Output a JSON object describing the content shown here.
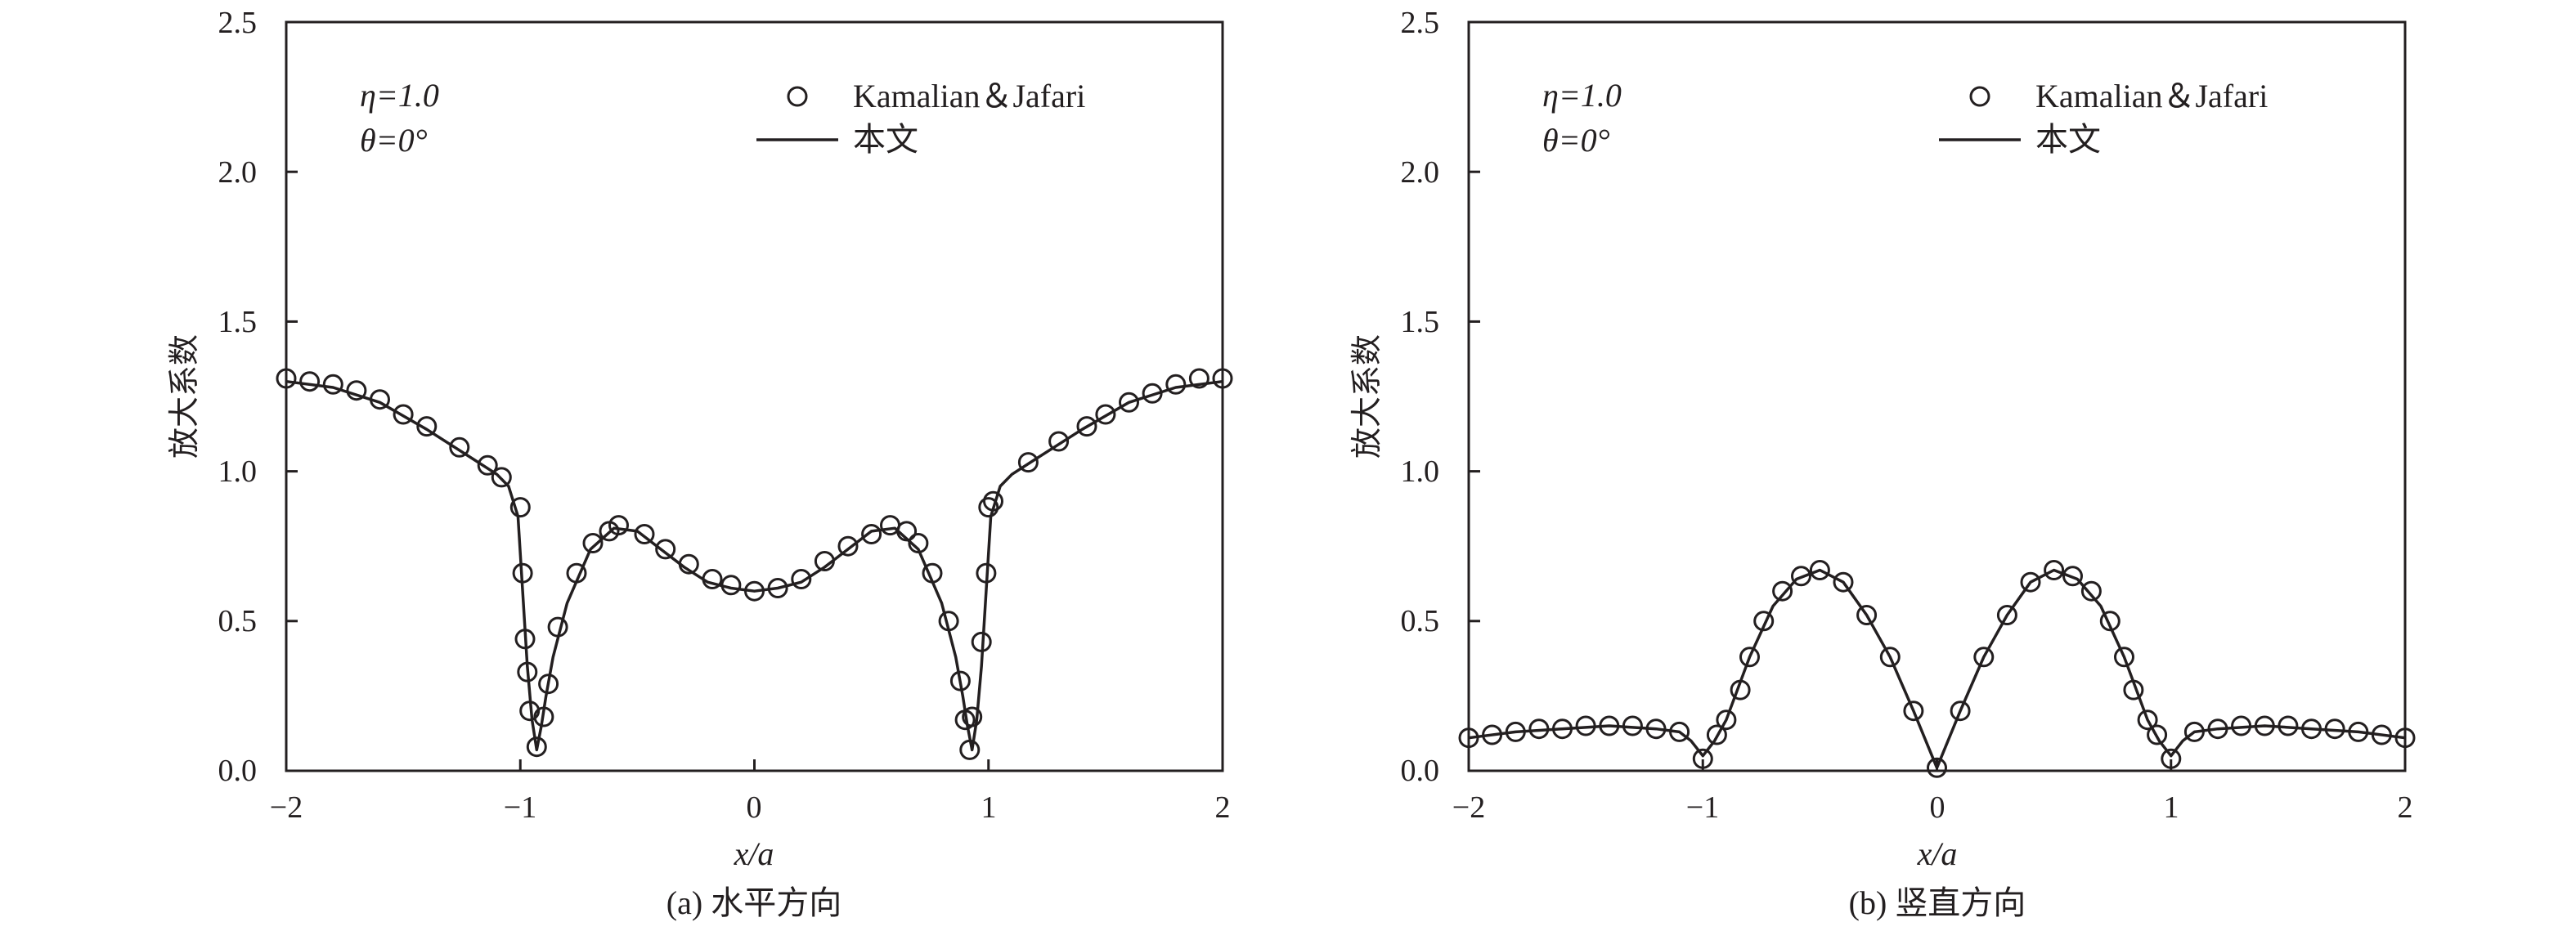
{
  "chart_data": [
    {
      "type": "scatter",
      "panel": "a",
      "caption": "(a) 水平方向",
      "xlabel": "x/a",
      "ylabel": "放大系数",
      "xlim": [
        -2,
        2
      ],
      "ylim": [
        0,
        2.5
      ],
      "x_ticks": [
        "−2",
        "−1",
        "0",
        "1",
        "2"
      ],
      "y_ticks": [
        "0.0",
        "0.5",
        "1.0",
        "1.5",
        "2.0",
        "2.5"
      ],
      "annotations": {
        "eta": "η=1.0",
        "theta": "θ=0°"
      },
      "legend_position": "top-right",
      "series": [
        {
          "name": "Kamalian＆Jafari",
          "marker": "open-circle",
          "x": [
            -2.0,
            -1.9,
            -1.8,
            -1.7,
            -1.6,
            -1.5,
            -1.4,
            -1.26,
            -1.14,
            -1.08,
            -1.0,
            -0.99,
            -0.98,
            -0.97,
            -0.96,
            -0.93,
            -0.9,
            -0.88,
            -0.84,
            -0.76,
            -0.69,
            -0.62,
            -0.58,
            -0.47,
            -0.38,
            -0.28,
            -0.18,
            -0.1,
            0.0,
            0.1,
            0.2,
            0.3,
            0.4,
            0.5,
            0.58,
            0.65,
            0.7,
            0.76,
            0.83,
            0.88,
            0.9,
            0.92,
            0.93,
            0.97,
            0.99,
            1.0,
            1.02,
            1.17,
            1.3,
            1.42,
            1.5,
            1.6,
            1.7,
            1.8,
            1.9,
            2.0
          ],
          "y": [
            1.31,
            1.3,
            1.29,
            1.27,
            1.24,
            1.19,
            1.15,
            1.08,
            1.02,
            0.98,
            0.88,
            0.66,
            0.44,
            0.33,
            0.2,
            0.08,
            0.18,
            0.29,
            0.48,
            0.66,
            0.76,
            0.8,
            0.82,
            0.79,
            0.74,
            0.69,
            0.64,
            0.62,
            0.6,
            0.61,
            0.64,
            0.7,
            0.75,
            0.79,
            0.82,
            0.8,
            0.76,
            0.66,
            0.5,
            0.3,
            0.17,
            0.07,
            0.18,
            0.43,
            0.66,
            0.88,
            0.9,
            1.03,
            1.1,
            1.15,
            1.19,
            1.23,
            1.26,
            1.29,
            1.31,
            1.31
          ]
        },
        {
          "name": "本文",
          "style": "solid-line",
          "x": [
            -2.0,
            -1.8,
            -1.6,
            -1.4,
            -1.2,
            -1.1,
            -1.05,
            -1.01,
            -0.99,
            -0.97,
            -0.95,
            -0.93,
            -0.91,
            -0.89,
            -0.86,
            -0.8,
            -0.7,
            -0.6,
            -0.5,
            -0.4,
            -0.3,
            -0.2,
            -0.1,
            0.0,
            0.1,
            0.2,
            0.3,
            0.4,
            0.5,
            0.6,
            0.7,
            0.8,
            0.86,
            0.89,
            0.91,
            0.93,
            0.95,
            0.97,
            0.99,
            1.01,
            1.05,
            1.1,
            1.2,
            1.4,
            1.6,
            1.8,
            2.0
          ],
          "y": [
            1.3,
            1.28,
            1.23,
            1.14,
            1.04,
            0.99,
            0.95,
            0.85,
            0.6,
            0.35,
            0.17,
            0.07,
            0.15,
            0.25,
            0.38,
            0.56,
            0.74,
            0.81,
            0.8,
            0.74,
            0.68,
            0.63,
            0.61,
            0.6,
            0.61,
            0.63,
            0.68,
            0.74,
            0.8,
            0.81,
            0.74,
            0.56,
            0.38,
            0.25,
            0.15,
            0.07,
            0.17,
            0.35,
            0.6,
            0.85,
            0.95,
            0.99,
            1.04,
            1.14,
            1.23,
            1.28,
            1.3
          ]
        }
      ]
    },
    {
      "type": "scatter",
      "panel": "b",
      "caption": "(b) 竖直方向",
      "xlabel": "x/a",
      "ylabel": "放大系数",
      "xlim": [
        -2,
        2
      ],
      "ylim": [
        0,
        2.5
      ],
      "x_ticks": [
        "−2",
        "−1",
        "0",
        "1",
        "2"
      ],
      "y_ticks": [
        "0.0",
        "0.5",
        "1.0",
        "1.5",
        "2.0",
        "2.5"
      ],
      "annotations": {
        "eta": "η=1.0",
        "theta": "θ=0°"
      },
      "legend_position": "top-right",
      "series": [
        {
          "name": "Kamalian＆Jafari",
          "marker": "open-circle",
          "x": [
            -2.0,
            -1.9,
            -1.8,
            -1.7,
            -1.6,
            -1.5,
            -1.4,
            -1.3,
            -1.2,
            -1.1,
            -1.0,
            -0.94,
            -0.9,
            -0.84,
            -0.8,
            -0.74,
            -0.66,
            -0.58,
            -0.5,
            -0.4,
            -0.3,
            -0.2,
            -0.1,
            0.0,
            0.1,
            0.2,
            0.3,
            0.4,
            0.5,
            0.58,
            0.66,
            0.74,
            0.8,
            0.84,
            0.9,
            0.94,
            1.0,
            1.1,
            1.2,
            1.3,
            1.4,
            1.5,
            1.6,
            1.7,
            1.8,
            1.9,
            2.0
          ],
          "y": [
            0.11,
            0.12,
            0.13,
            0.14,
            0.14,
            0.15,
            0.15,
            0.15,
            0.14,
            0.13,
            0.04,
            0.12,
            0.17,
            0.27,
            0.38,
            0.5,
            0.6,
            0.65,
            0.67,
            0.63,
            0.52,
            0.38,
            0.2,
            0.01,
            0.2,
            0.38,
            0.52,
            0.63,
            0.67,
            0.65,
            0.6,
            0.5,
            0.38,
            0.27,
            0.17,
            0.12,
            0.04,
            0.13,
            0.14,
            0.15,
            0.15,
            0.15,
            0.14,
            0.14,
            0.13,
            0.12,
            0.11
          ]
        },
        {
          "name": "本文",
          "style": "solid-line",
          "x": [
            -2.0,
            -1.8,
            -1.6,
            -1.4,
            -1.2,
            -1.1,
            -1.05,
            -1.0,
            -0.95,
            -0.9,
            -0.8,
            -0.7,
            -0.6,
            -0.5,
            -0.4,
            -0.3,
            -0.2,
            -0.1,
            0.0,
            0.1,
            0.2,
            0.3,
            0.4,
            0.5,
            0.6,
            0.7,
            0.8,
            0.9,
            0.95,
            1.0,
            1.05,
            1.1,
            1.2,
            1.4,
            1.6,
            1.8,
            2.0
          ],
          "y": [
            0.11,
            0.13,
            0.14,
            0.15,
            0.14,
            0.13,
            0.1,
            0.05,
            0.1,
            0.17,
            0.38,
            0.55,
            0.64,
            0.67,
            0.63,
            0.52,
            0.38,
            0.2,
            0.01,
            0.2,
            0.38,
            0.52,
            0.63,
            0.67,
            0.64,
            0.55,
            0.38,
            0.17,
            0.1,
            0.05,
            0.1,
            0.13,
            0.14,
            0.15,
            0.14,
            0.13,
            0.11
          ]
        }
      ]
    }
  ]
}
